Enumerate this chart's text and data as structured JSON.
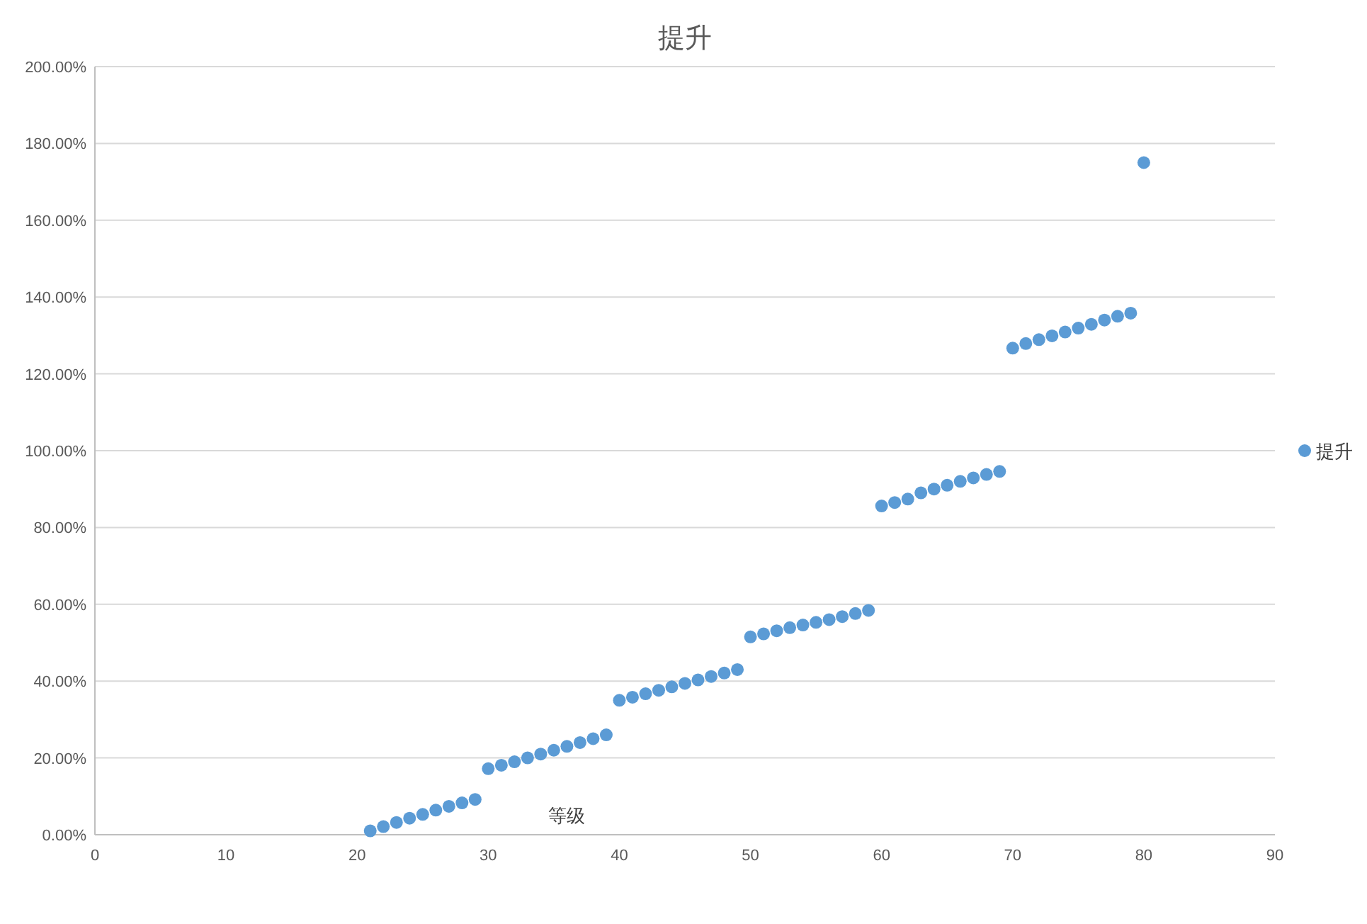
{
  "chart_data": {
    "type": "scatter",
    "title": "提升",
    "xlabel": "等级",
    "x": [
      21,
      22,
      23,
      24,
      25,
      26,
      27,
      28,
      29,
      30,
      31,
      32,
      33,
      34,
      35,
      36,
      37,
      38,
      39,
      40,
      41,
      42,
      43,
      44,
      45,
      46,
      47,
      48,
      49,
      50,
      51,
      52,
      53,
      54,
      55,
      56,
      57,
      58,
      59,
      60,
      61,
      62,
      63,
      64,
      65,
      66,
      67,
      68,
      69,
      70,
      71,
      72,
      73,
      74,
      75,
      76,
      77,
      78,
      79,
      80
    ],
    "series": [
      {
        "name": "提升",
        "color": "#5b9bd5",
        "values": [
          1.0,
          2.1,
          3.2,
          4.3,
          5.3,
          6.4,
          7.4,
          8.3,
          9.2,
          17.2,
          18.1,
          19.0,
          20.0,
          21.0,
          22.0,
          23.0,
          24.0,
          25.0,
          26.0,
          35.0,
          35.8,
          36.7,
          37.6,
          38.5,
          39.4,
          40.3,
          41.2,
          42.1,
          43.0,
          51.5,
          52.3,
          53.1,
          53.9,
          54.6,
          55.3,
          56.0,
          56.8,
          57.6,
          58.4,
          85.6,
          86.5,
          87.4,
          89.0,
          90.0,
          91.0,
          92.0,
          92.9,
          93.8,
          94.6,
          126.7,
          127.9,
          128.9,
          129.9,
          130.9,
          131.9,
          132.9,
          134.0,
          135.0,
          135.8,
          175.0
        ]
      }
    ],
    "xlim": [
      0,
      90
    ],
    "xticks": [
      0,
      10,
      20,
      30,
      40,
      50,
      60,
      70,
      80,
      90
    ],
    "ylim": [
      0,
      200
    ],
    "yticks": [
      {
        "value": 0,
        "label": "0.00%"
      },
      {
        "value": 20,
        "label": "20.00%"
      },
      {
        "value": 40,
        "label": "40.00%"
      },
      {
        "value": 60,
        "label": "60.00%"
      },
      {
        "value": 80,
        "label": "80.00%"
      },
      {
        "value": 100,
        "label": "100.00%"
      },
      {
        "value": 120,
        "label": "120.00%"
      },
      {
        "value": 140,
        "label": "140.00%"
      },
      {
        "value": 160,
        "label": "160.00%"
      },
      {
        "value": 180,
        "label": "180.00%"
      },
      {
        "value": 200,
        "label": "200.00%"
      }
    ],
    "grid": "y",
    "legend": "right",
    "marker": "circle"
  }
}
